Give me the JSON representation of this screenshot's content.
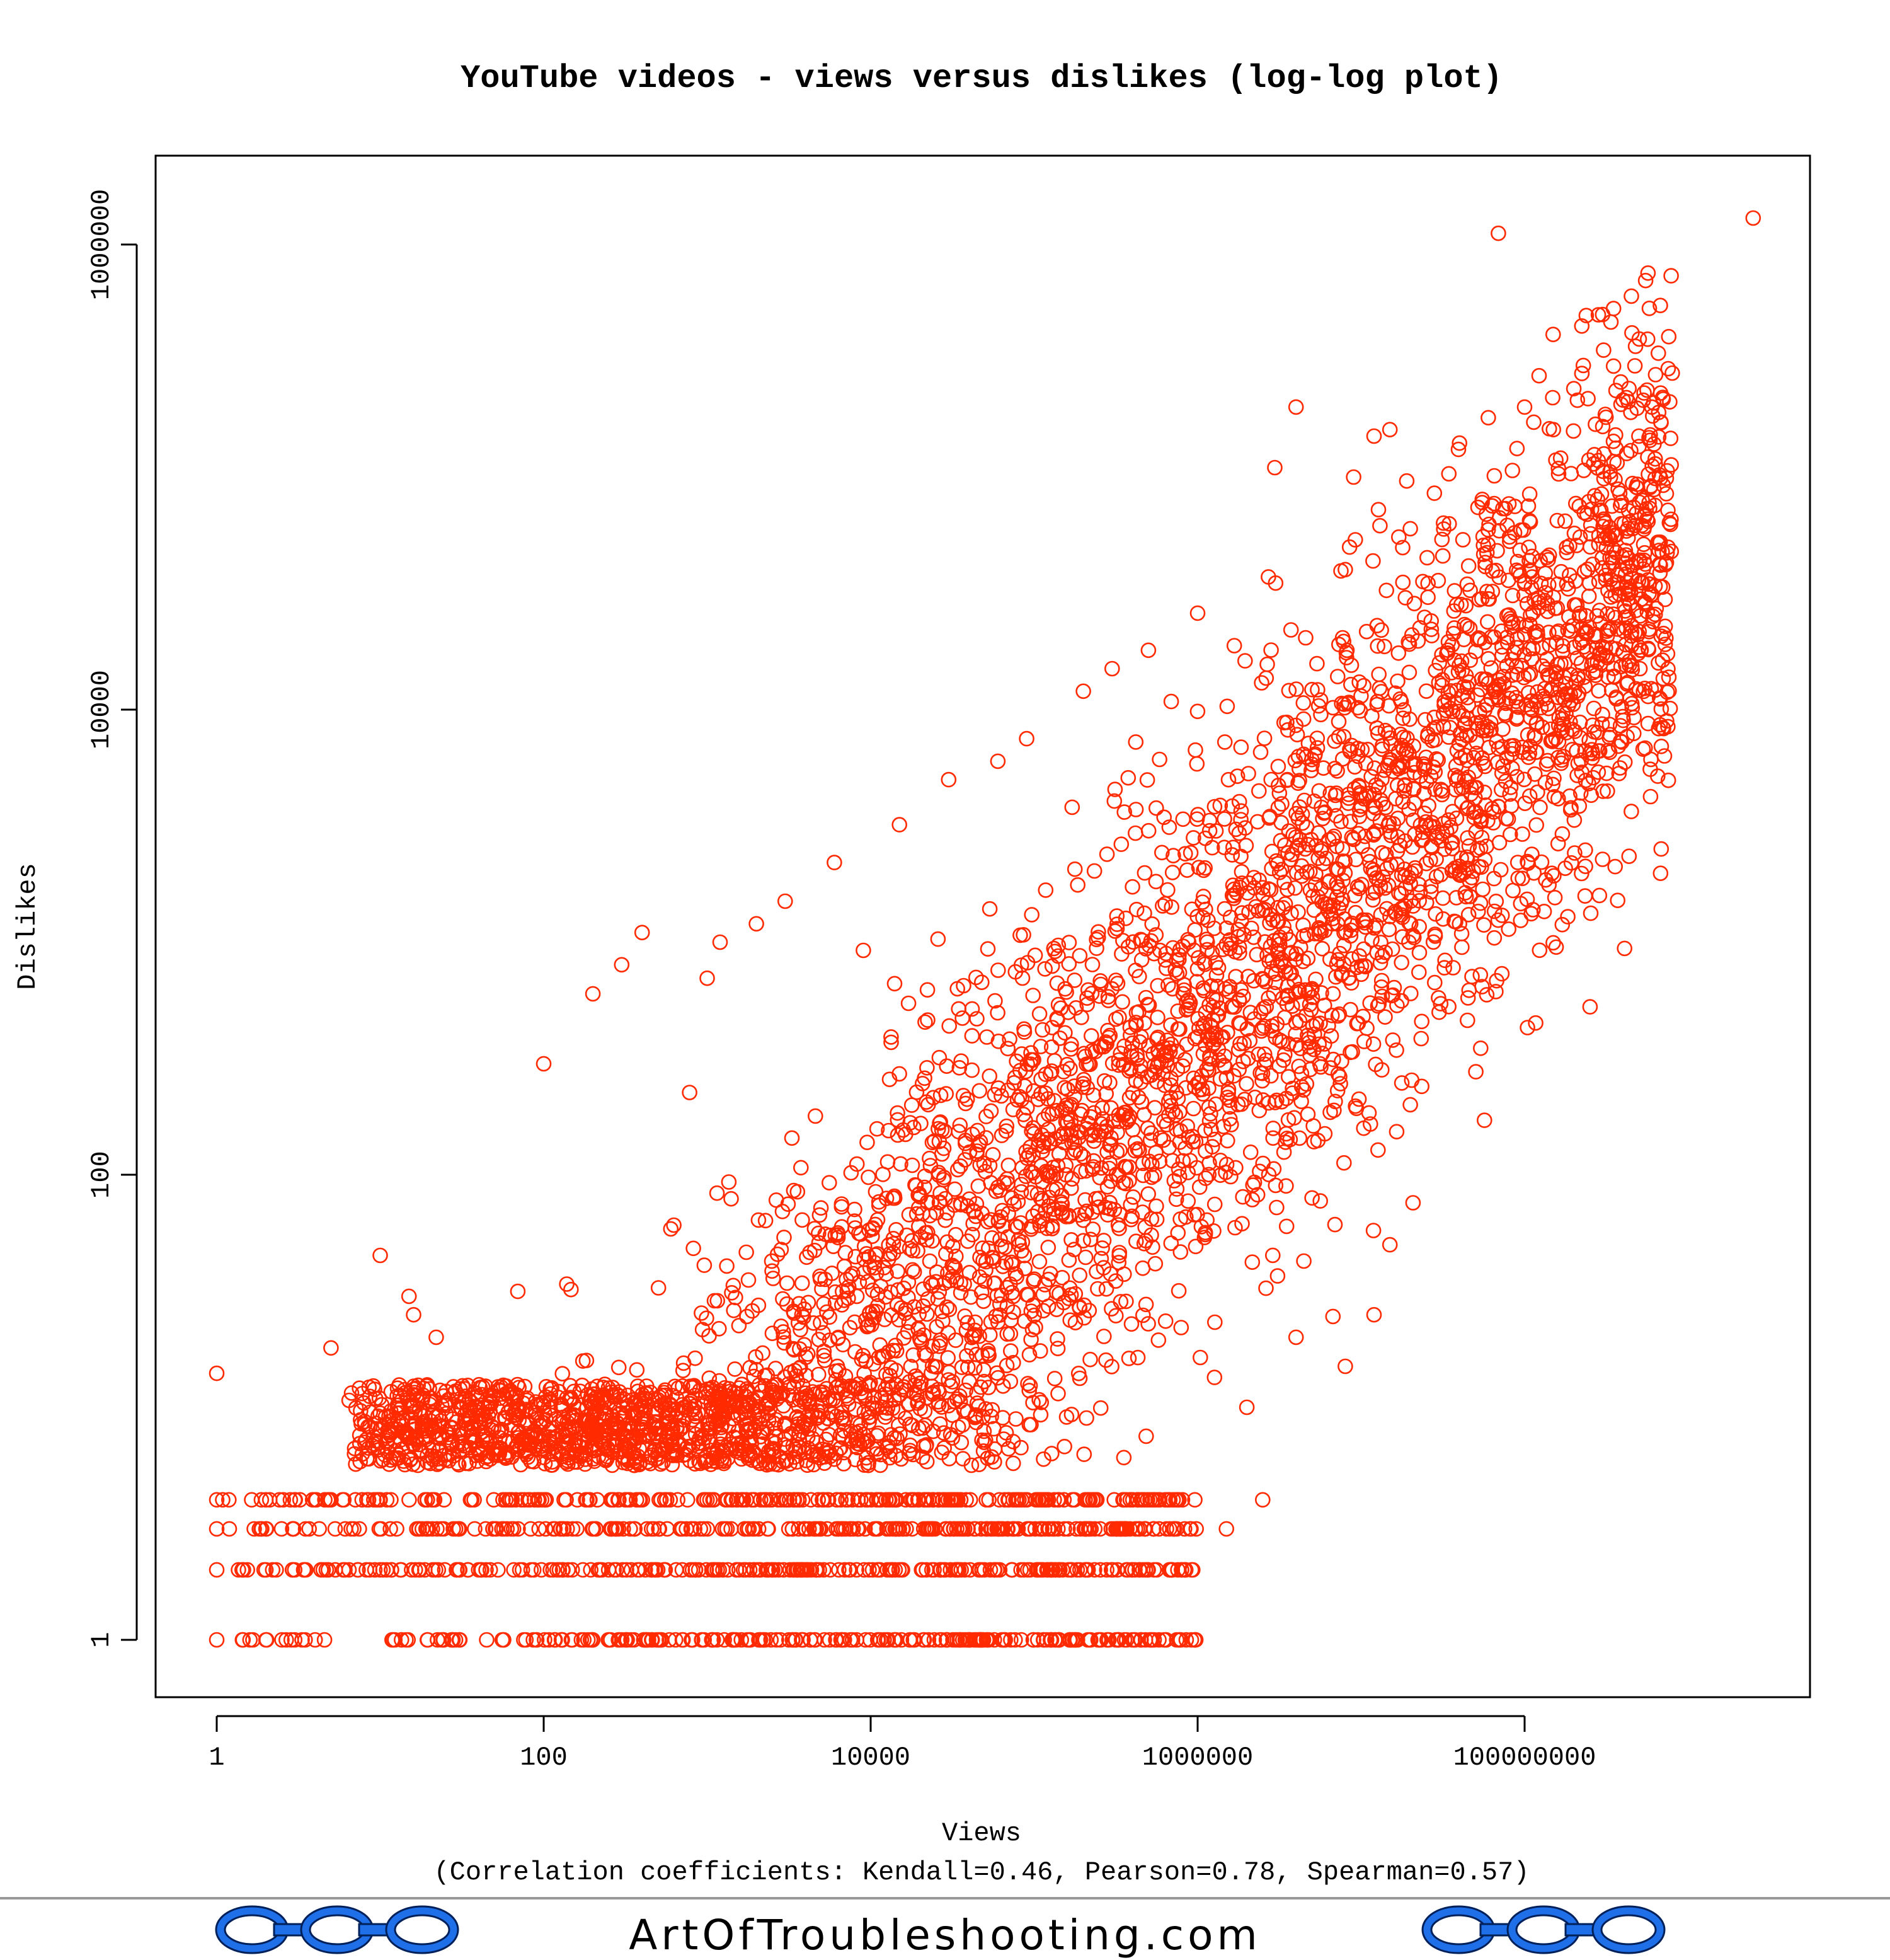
{
  "chart_data": {
    "type": "scatter",
    "title": "YouTube videos - views versus dislikes (log-log plot)",
    "xlabel": "Views",
    "ylabel": "Dislikes",
    "subtitle": "(Correlation coefficients: Kendall=0.46, Pearson=0.78, Spearman=0.57)",
    "x_scale": "log",
    "y_scale": "log",
    "xlim": [
      0.5,
      5000000000
    ],
    "ylim": [
      0.55,
      2500000
    ],
    "x_ticks": [
      1,
      100,
      10000,
      1000000,
      100000000
    ],
    "x_tick_labels": [
      "1",
      "100",
      "10000",
      "1000000",
      "100000000"
    ],
    "y_ticks": [
      1,
      100,
      10000,
      1000000
    ],
    "y_tick_labels": [
      "1",
      "100",
      "10000",
      "1000000"
    ],
    "marker": "open-circle",
    "point_color": "#FF2A00",
    "grid": false,
    "legend": "none",
    "points": [
      [
        1,
        1
      ],
      [
        2,
        1
      ],
      [
        3,
        1
      ],
      [
        4,
        1
      ],
      [
        1,
        2
      ],
      [
        2,
        2
      ],
      [
        3,
        2
      ],
      [
        1,
        3
      ],
      [
        2,
        3
      ],
      [
        1,
        4
      ],
      [
        2,
        4
      ],
      [
        3,
        4
      ],
      [
        4,
        4
      ],
      [
        5,
        4
      ],
      [
        1,
        14
      ],
      [
        5,
        18
      ],
      [
        10,
        4
      ],
      [
        10,
        8
      ],
      [
        10,
        45
      ],
      [
        15,
        30
      ],
      [
        16,
        25
      ],
      [
        22,
        20
      ],
      [
        20,
        12
      ],
      [
        28,
        3
      ],
      [
        100,
        300
      ],
      [
        200,
        600
      ],
      [
        300,
        800
      ],
      [
        400,
        1100
      ],
      [
        1000,
        700
      ],
      [
        1200,
        1000
      ],
      [
        2000,
        1200
      ],
      [
        3000,
        1500
      ],
      [
        6000,
        2200
      ],
      [
        15000,
        3200
      ],
      [
        30000,
        5000
      ],
      [
        60000,
        6000
      ],
      [
        90000,
        7500
      ],
      [
        200000,
        12000
      ],
      [
        300000,
        15000
      ],
      [
        500000,
        18000
      ],
      [
        1000000,
        26000
      ],
      [
        3000000,
        35000
      ],
      [
        8000000,
        40000
      ],
      [
        4000000,
        200000
      ],
      [
        12000000,
        150000
      ],
      [
        9000000,
        100000
      ],
      [
        8500000,
        50000
      ],
      [
        15000000,
        160000
      ],
      [
        20000000,
        60000
      ],
      [
        40000000,
        140000
      ],
      [
        60000000,
        180000
      ],
      [
        100000000,
        200000
      ],
      [
        150000000,
        160000
      ],
      [
        200000000,
        240000
      ],
      [
        300000000,
        500000
      ],
      [
        450000000,
        600000
      ],
      [
        550000000,
        700000
      ],
      [
        350000000,
        300000
      ],
      [
        600000000,
        200000
      ],
      [
        700000000,
        220000
      ],
      [
        800000000,
        280000
      ],
      [
        500000000,
        150000
      ],
      [
        2500000000,
        1300000
      ],
      [
        3000000,
        90
      ],
      [
        4000000,
        20
      ],
      [
        2000000,
        10
      ],
      [
        2500000,
        4
      ],
      [
        3500000,
        60
      ],
      [
        1500000,
        3
      ],
      [
        6000000,
        150
      ],
      [
        12000000,
        25
      ],
      [
        20000000,
        200
      ],
      [
        15000000,
        50
      ],
      [
        30000000,
        500
      ],
      [
        40000000,
        1200
      ],
      [
        8000000,
        15
      ]
    ]
  },
  "footer": {
    "site": "ArtOfTroubleshooting.com"
  },
  "colors": {
    "points": "#FF2A00",
    "chain_fill": "#1E6FE8",
    "chain_stroke": "#00205A",
    "footer_rule": "#999999"
  },
  "icons": {
    "left": "chain-icon",
    "right": "chain-icon"
  }
}
